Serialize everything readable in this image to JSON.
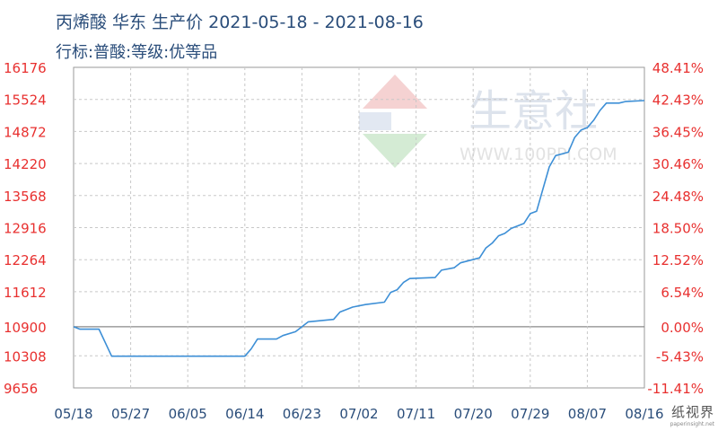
{
  "chart_data": {
    "type": "line",
    "title": "丙烯酸 华东 生产价 2021-05-18 - 2021-08-16",
    "subtitle": "行标:普酸:等级:优等品",
    "y_left": {
      "ticks": [
        "16176",
        "15524",
        "14872",
        "14220",
        "13568",
        "12916",
        "12264",
        "11612",
        "10900",
        "10308",
        "9656"
      ],
      "values": [
        16176,
        15524,
        14872,
        14220,
        13568,
        12916,
        12264,
        11612,
        10900,
        10308,
        9656
      ],
      "ylim": [
        9656,
        16176
      ]
    },
    "y_right": {
      "ticks": [
        "48.41%",
        "42.43%",
        "36.45%",
        "30.46%",
        "24.48%",
        "18.50%",
        "12.52%",
        "6.54%",
        "0.00%",
        "-5.43%",
        "-11.41%"
      ]
    },
    "x": {
      "ticks": [
        "05/18",
        "05/27",
        "06/05",
        "06/14",
        "06/23",
        "07/02",
        "07/11",
        "07/20",
        "07/29",
        "08/07",
        "08/16"
      ],
      "range": [
        "2021-05-18",
        "2021-08-16"
      ]
    },
    "series": [
      {
        "color": "#3d8fd6",
        "points": [
          [
            "2021-05-18",
            10900
          ],
          [
            "2021-05-19",
            10850
          ],
          [
            "2021-05-22",
            10850
          ],
          [
            "2021-05-24",
            10300
          ],
          [
            "2021-06-14",
            10300
          ],
          [
            "2021-06-15",
            10450
          ],
          [
            "2021-06-16",
            10650
          ],
          [
            "2021-06-19",
            10650
          ],
          [
            "2021-06-20",
            10720
          ],
          [
            "2021-06-22",
            10800
          ],
          [
            "2021-06-23",
            10900
          ],
          [
            "2021-06-24",
            11000
          ],
          [
            "2021-06-28",
            11050
          ],
          [
            "2021-06-29",
            11200
          ],
          [
            "2021-06-30",
            11250
          ],
          [
            "2021-07-01",
            11300
          ],
          [
            "2021-07-03",
            11350
          ],
          [
            "2021-07-06",
            11400
          ],
          [
            "2021-07-07",
            11600
          ],
          [
            "2021-07-08",
            11650
          ],
          [
            "2021-07-09",
            11800
          ],
          [
            "2021-07-10",
            11880
          ],
          [
            "2021-07-14",
            11900
          ],
          [
            "2021-07-15",
            12050
          ],
          [
            "2021-07-17",
            12100
          ],
          [
            "2021-07-18",
            12200
          ],
          [
            "2021-07-21",
            12300
          ],
          [
            "2021-07-22",
            12500
          ],
          [
            "2021-07-23",
            12600
          ],
          [
            "2021-07-24",
            12750
          ],
          [
            "2021-07-25",
            12800
          ],
          [
            "2021-07-26",
            12900
          ],
          [
            "2021-07-28",
            13000
          ],
          [
            "2021-07-29",
            13200
          ],
          [
            "2021-07-30",
            13250
          ],
          [
            "2021-07-31",
            13700
          ],
          [
            "2021-08-01",
            14150
          ],
          [
            "2021-08-02",
            14380
          ],
          [
            "2021-08-04",
            14450
          ],
          [
            "2021-08-05",
            14750
          ],
          [
            "2021-08-06",
            14900
          ],
          [
            "2021-08-07",
            14950
          ],
          [
            "2021-08-08",
            15100
          ],
          [
            "2021-08-09",
            15300
          ],
          [
            "2021-08-10",
            15450
          ],
          [
            "2021-08-12",
            15450
          ],
          [
            "2021-08-13",
            15480
          ],
          [
            "2021-08-16",
            15500
          ]
        ]
      }
    ],
    "grid": true,
    "reference_line": 10900
  },
  "watermark": {
    "logo_text": "生意社",
    "logo_url": "WWW.100PPI.COM",
    "corner_cn": "纸视界",
    "corner_url": "paperinsight.net"
  },
  "colors": {
    "left_axis": "#e8302f",
    "right_axis": "#e8302f",
    "x_axis": "#2a4d7a",
    "grid": "#c8c8c8",
    "line": "#3d8fd6",
    "reference": "#888888"
  }
}
